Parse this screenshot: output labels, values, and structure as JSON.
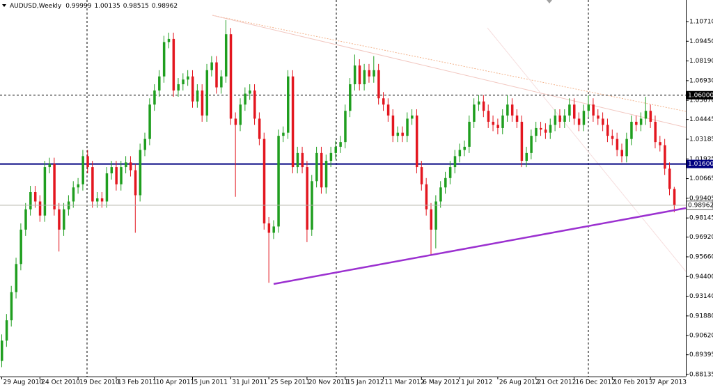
{
  "chart_data": {
    "type": "candlestick",
    "title": "AUDUSD,Weekly",
    "categories": [
      "29 Aug 2010",
      null,
      null,
      null,
      null,
      null,
      null,
      null,
      "24 Oct 2010",
      null,
      null,
      null,
      null,
      null,
      null,
      null,
      "19 Dec 2010",
      null,
      null,
      null,
      null,
      null,
      null,
      null,
      "13 Feb 2011",
      null,
      null,
      null,
      null,
      null,
      null,
      null,
      "10 Apr 2011",
      null,
      null,
      null,
      null,
      null,
      null,
      null,
      "5 Jun 2011",
      null,
      null,
      null,
      null,
      null,
      null,
      null,
      "31 Jul 2011",
      null,
      null,
      null,
      null,
      null,
      null,
      null,
      "25 Sep 2011",
      null,
      null,
      null,
      null,
      null,
      null,
      null,
      "20 Nov 2011",
      null,
      null,
      null,
      null,
      null,
      null,
      null,
      "15 Jan 2012",
      null,
      null,
      null,
      null,
      null,
      null,
      null,
      "11 Mar 2012",
      null,
      null,
      null,
      null,
      null,
      null,
      null,
      "6 May 2012",
      null,
      null,
      null,
      null,
      null,
      null,
      null,
      "1 Jul 2012",
      null,
      null,
      null,
      null,
      null,
      null,
      null,
      "26 Aug 2012",
      null,
      null,
      null,
      null,
      null,
      null,
      null,
      "21 Oct 2012",
      null,
      null,
      null,
      null,
      null,
      null,
      null,
      "16 Dec 2012",
      null,
      null,
      null,
      null,
      null,
      null,
      null,
      "10 Feb 2013",
      null,
      null,
      null,
      null,
      null,
      null,
      null,
      "7 Apr 2013",
      null,
      null,
      null,
      null,
      null
    ],
    "open": [
      0.89,
      0.903,
      0.916,
      0.934,
      0.952,
      0.974,
      0.987,
      0.998,
      0.992,
      0.983,
      1.014,
      1.016,
      0.987,
      0.974,
      0.987,
      0.992,
      1.001,
      1.003,
      1.021,
      1.014,
      0.992,
      0.994,
      0.992,
      1.01,
      1.014,
      1.003,
      1.014,
      1.017,
      1.012,
      0.996,
      1.025,
      1.032,
      1.054,
      1.063,
      1.072,
      1.094,
      1.096,
      1.063,
      1.067,
      1.07,
      1.072,
      1.056,
      1.063,
      1.047,
      1.076,
      1.081,
      1.065,
      1.072,
      1.099,
      1.045,
      1.041,
      1.054,
      1.061,
      1.063,
      1.045,
      1.032,
      0.978,
      0.972,
      0.976,
      1.034,
      1.036,
      1.072,
      1.014,
      1.023,
      1.014,
      0.974,
      1.005,
      1.023,
      1.001,
      1.018,
      1.023,
      1.027,
      1.03,
      1.05,
      1.067,
      1.079,
      1.067,
      1.076,
      1.072,
      1.076,
      1.058,
      1.054,
      1.047,
      1.034,
      1.036,
      1.034,
      1.045,
      1.047,
      1.014,
      1.003,
      0.987,
      0.974,
      0.992,
      1.001,
      1.007,
      1.014,
      1.021,
      1.025,
      1.027,
      1.043,
      1.054,
      1.056,
      1.05,
      1.043,
      1.041,
      1.039,
      1.047,
      1.054,
      1.047,
      1.043,
      1.018,
      1.023,
      1.034,
      1.039,
      1.038,
      1.036,
      1.041,
      1.047,
      1.043,
      1.047,
      1.054,
      1.045,
      1.041,
      1.05,
      1.054,
      1.047,
      1.045,
      1.041,
      1.034,
      1.032,
      1.025,
      1.021,
      1.032,
      1.043,
      1.041,
      1.045,
      1.05,
      1.043,
      1.03,
      1.028,
      1.013,
      0.99999
    ],
    "high": [
      0.907,
      0.92,
      0.938,
      0.956,
      0.978,
      0.991,
      1.002,
      1.002,
      0.996,
      1.018,
      1.02,
      1.02,
      0.991,
      0.991,
      0.996,
      1.005,
      1.007,
      1.025,
      1.025,
      1.018,
      0.998,
      0.998,
      1.014,
      1.018,
      1.018,
      1.018,
      1.021,
      1.021,
      1.016,
      1.029,
      1.036,
      1.058,
      1.067,
      1.076,
      1.098,
      1.1,
      1.1,
      1.071,
      1.074,
      1.076,
      1.076,
      1.067,
      1.067,
      1.08,
      1.085,
      1.085,
      1.076,
      1.108,
      1.103,
      1.049,
      1.058,
      1.065,
      1.067,
      1.067,
      1.049,
      1.036,
      0.982,
      0.98,
      1.038,
      1.04,
      1.076,
      1.076,
      1.027,
      1.027,
      1.018,
      1.009,
      1.027,
      1.027,
      1.022,
      1.027,
      1.031,
      1.034,
      1.054,
      1.071,
      1.086,
      1.083,
      1.08,
      1.08,
      1.085,
      1.08,
      1.062,
      1.058,
      1.051,
      1.04,
      1.04,
      1.049,
      1.051,
      1.051,
      1.018,
      1.007,
      0.991,
      0.996,
      1.005,
      1.011,
      1.018,
      1.025,
      1.029,
      1.031,
      1.047,
      1.058,
      1.06,
      1.06,
      1.054,
      1.047,
      1.045,
      1.051,
      1.06,
      1.058,
      1.051,
      1.047,
      1.027,
      1.038,
      1.043,
      1.043,
      1.042,
      1.045,
      1.051,
      1.051,
      1.051,
      1.058,
      1.058,
      1.049,
      1.054,
      1.06,
      1.058,
      1.051,
      1.049,
      1.045,
      1.038,
      1.036,
      1.029,
      1.036,
      1.047,
      1.047,
      1.049,
      1.059,
      1.054,
      1.047,
      1.034,
      1.032,
      1.017,
      1.00135
    ],
    "low": [
      0.886,
      0.899,
      0.912,
      0.93,
      0.948,
      0.97,
      0.983,
      0.988,
      0.979,
      0.979,
      1.01,
      0.983,
      0.96,
      0.97,
      0.983,
      0.988,
      0.997,
      0.999,
      1.01,
      0.988,
      0.988,
      0.988,
      0.988,
      1.006,
      0.999,
      0.999,
      1.01,
      1.008,
      0.972,
      0.992,
      1.021,
      1.028,
      1.05,
      1.059,
      1.068,
      1.09,
      1.059,
      1.059,
      1.063,
      1.066,
      1.052,
      1.052,
      1.043,
      1.043,
      1.072,
      1.061,
      1.061,
      1.068,
      1.041,
      0.995,
      1.037,
      1.05,
      1.057,
      1.041,
      1.028,
      0.974,
      0.94,
      0.968,
      0.972,
      1.03,
      1.032,
      1.01,
      1.01,
      1.01,
      0.966,
      0.97,
      1.001,
      0.997,
      0.997,
      1.014,
      1.019,
      1.023,
      1.026,
      1.046,
      1.063,
      1.063,
      1.063,
      1.068,
      1.068,
      1.054,
      1.05,
      1.043,
      1.03,
      1.03,
      1.03,
      1.03,
      1.041,
      1.01,
      0.999,
      0.983,
      0.958,
      0.962,
      0.988,
      0.997,
      1.003,
      1.01,
      1.017,
      1.021,
      1.023,
      1.039,
      1.05,
      1.046,
      1.039,
      1.037,
      1.035,
      1.035,
      1.043,
      1.043,
      1.039,
      1.014,
      1.014,
      1.019,
      1.03,
      1.034,
      1.032,
      1.032,
      1.037,
      1.039,
      1.039,
      1.043,
      1.041,
      1.037,
      1.037,
      1.046,
      1.043,
      1.041,
      1.037,
      1.03,
      1.028,
      1.021,
      1.017,
      1.017,
      1.028,
      1.037,
      1.037,
      1.041,
      1.039,
      1.026,
      1.024,
      1.009,
      0.996,
      0.98515
    ],
    "close": [
      0.903,
      0.916,
      0.934,
      0.952,
      0.974,
      0.987,
      0.998,
      0.992,
      0.983,
      1.014,
      1.016,
      0.987,
      0.974,
      0.987,
      0.992,
      1.001,
      1.003,
      1.021,
      1.014,
      0.992,
      0.994,
      0.992,
      1.01,
      1.014,
      1.003,
      1.014,
      1.017,
      1.012,
      0.996,
      1.025,
      1.032,
      1.054,
      1.063,
      1.072,
      1.094,
      1.096,
      1.063,
      1.067,
      1.07,
      1.072,
      1.056,
      1.063,
      1.047,
      1.076,
      1.081,
      1.065,
      1.072,
      1.099,
      1.045,
      1.041,
      1.054,
      1.061,
      1.063,
      1.045,
      1.032,
      0.978,
      0.972,
      0.976,
      1.034,
      1.036,
      1.072,
      1.014,
      1.023,
      1.014,
      0.974,
      1.005,
      1.023,
      1.001,
      1.018,
      1.023,
      1.027,
      1.03,
      1.05,
      1.067,
      1.079,
      1.067,
      1.076,
      1.072,
      1.076,
      1.058,
      1.054,
      1.047,
      1.034,
      1.036,
      1.034,
      1.045,
      1.047,
      1.014,
      1.003,
      0.987,
      0.974,
      0.992,
      1.001,
      1.007,
      1.014,
      1.021,
      1.025,
      1.027,
      1.043,
      1.054,
      1.056,
      1.05,
      1.043,
      1.041,
      1.039,
      1.047,
      1.054,
      1.047,
      1.043,
      1.018,
      1.023,
      1.034,
      1.039,
      1.038,
      1.036,
      1.041,
      1.047,
      1.043,
      1.047,
      1.054,
      1.045,
      1.041,
      1.05,
      1.054,
      1.047,
      1.045,
      1.041,
      1.034,
      1.032,
      1.025,
      1.021,
      1.032,
      1.043,
      1.041,
      1.045,
      1.05,
      1.043,
      1.03,
      1.028,
      1.013,
      0.99999,
      0.98962
    ],
    "up_color": "#1f9e1f",
    "down_color": "#e3161f",
    "ylim": [
      0.88,
      1.1209
    ],
    "yticks": [
      {
        "value": 1.1071,
        "label": "1.10710"
      },
      {
        "value": 1.0945,
        "label": "1.09450"
      },
      {
        "value": 1.0819,
        "label": "1.08190"
      },
      {
        "value": 1.0693,
        "label": "1.06930"
      },
      {
        "value": 1.0567,
        "label": "1.05670"
      },
      1.04445,
      1.03185,
      1.01925,
      1.00665,
      0.99405,
      0.98145,
      {
        "value": 0.9692,
        "label": "0.96920"
      },
      {
        "value": 0.9566,
        "label": "0.95660"
      },
      {
        "value": 0.944,
        "label": "0.94400"
      },
      {
        "value": 0.9314,
        "label": "0.93140"
      },
      {
        "value": 0.9188,
        "label": "0.91880"
      },
      {
        "value": 0.9062,
        "label": "0.90620"
      },
      0.89395,
      0.88135
    ],
    "hlines": [
      {
        "value": 1.06,
        "label": "1.06000",
        "color": "#000000",
        "style": "dashed"
      },
      {
        "value": 1.016,
        "label": "1.01600",
        "color": "#000080",
        "style": "solid"
      }
    ],
    "last_price_color": "#b0b0a8"
  }
}
